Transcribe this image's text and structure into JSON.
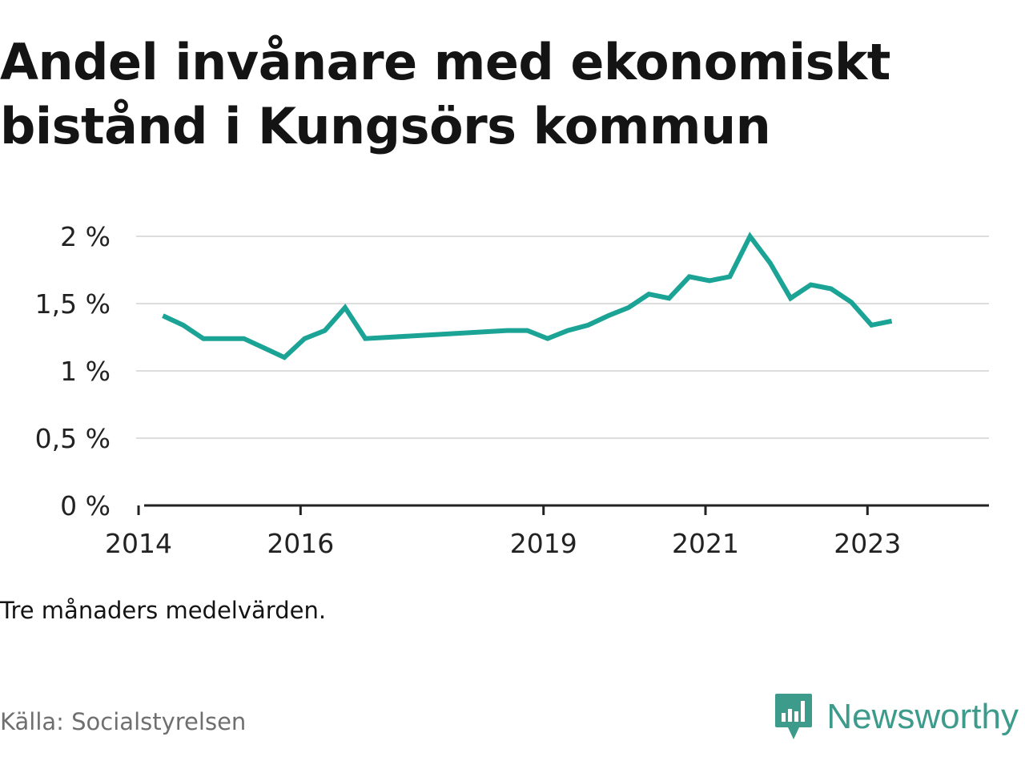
{
  "title_lines": [
    "Andel invånare med ekonomiskt",
    "bistånd i Kungsörs kommun"
  ],
  "note": "Tre månaders medelvärden.",
  "source": "Källa: Socialstyrelsen",
  "brand": {
    "name": "Newsworthy",
    "icon": "bar-chart-speech-bubble-icon"
  },
  "colors": {
    "line": "#1ba396",
    "grid": "#dddddd",
    "axis": "#222222",
    "brand": "#3d9b8c",
    "source_text": "#6f6f6f"
  },
  "chart_data": {
    "type": "line",
    "title": "Andel invånare med ekonomiskt bistånd i Kungsörs kommun",
    "xlabel": "",
    "ylabel": "",
    "x_ticks": [
      {
        "label": "2014",
        "value": 2014.0
      },
      {
        "label": "2016",
        "value": 2016.0
      },
      {
        "label": "2019",
        "value": 2019.0
      },
      {
        "label": "2021",
        "value": 2021.0
      },
      {
        "label": "2023",
        "value": 2023.0
      }
    ],
    "y_ticks": [
      {
        "label": "0 %",
        "value": 0
      },
      {
        "label": "0,5 %",
        "value": 0.5
      },
      {
        "label": "1 %",
        "value": 1
      },
      {
        "label": "1,5 %",
        "value": 1.5
      },
      {
        "label": "2 %",
        "value": 2
      }
    ],
    "xlim": [
      2013.97,
      2024.5
    ],
    "ylim": [
      0,
      2
    ],
    "grid": true,
    "series": [
      {
        "values": [
          {
            "x": 2014.3,
            "y": 1.41
          },
          {
            "x": 2014.55,
            "y": 1.34
          },
          {
            "x": 2014.8,
            "y": 1.24
          },
          {
            "x": 2015.05,
            "y": 1.24
          },
          {
            "x": 2015.3,
            "y": 1.24
          },
          {
            "x": 2015.55,
            "y": 1.17
          },
          {
            "x": 2015.8,
            "y": 1.1
          },
          {
            "x": 2016.05,
            "y": 1.24
          },
          {
            "x": 2016.3,
            "y": 1.3
          },
          {
            "x": 2016.55,
            "y": 1.47
          },
          {
            "x": 2016.8,
            "y": 1.24
          },
          {
            "x": 2018.55,
            "y": 1.3
          },
          {
            "x": 2018.8,
            "y": 1.3
          },
          {
            "x": 2019.05,
            "y": 1.24
          },
          {
            "x": 2019.3,
            "y": 1.3
          },
          {
            "x": 2019.55,
            "y": 1.34
          },
          {
            "x": 2019.8,
            "y": 1.41
          },
          {
            "x": 2020.05,
            "y": 1.47
          },
          {
            "x": 2020.3,
            "y": 1.57
          },
          {
            "x": 2020.55,
            "y": 1.54
          },
          {
            "x": 2020.8,
            "y": 1.7
          },
          {
            "x": 2021.05,
            "y": 1.67
          },
          {
            "x": 2021.3,
            "y": 1.7
          },
          {
            "x": 2021.55,
            "y": 2.0
          },
          {
            "x": 2021.8,
            "y": 1.8
          },
          {
            "x": 2022.05,
            "y": 1.54
          },
          {
            "x": 2022.3,
            "y": 1.64
          },
          {
            "x": 2022.55,
            "y": 1.61
          },
          {
            "x": 2022.8,
            "y": 1.51
          },
          {
            "x": 2023.05,
            "y": 1.34
          },
          {
            "x": 2023.3,
            "y": 1.37
          }
        ]
      }
    ]
  }
}
